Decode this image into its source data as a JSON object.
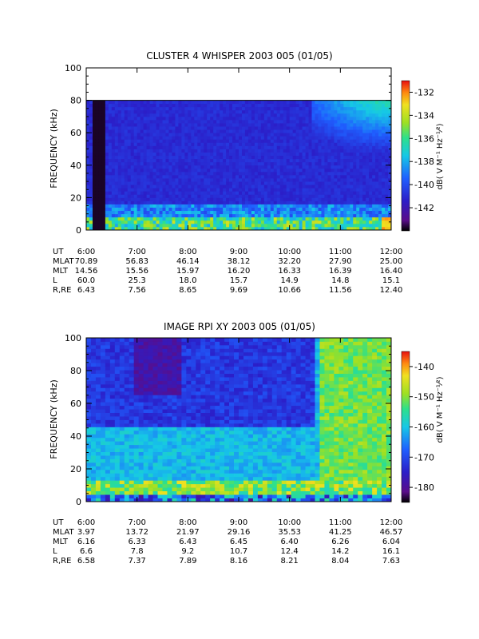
{
  "chart_data": [
    {
      "type": "heatmap",
      "title": "CLUSTER 4 WHISPER 2003 005 (01/05)",
      "ylabel": "FREQUENCY (kHz)",
      "ylim": [
        0,
        100
      ],
      "yticks": [
        "0",
        "20",
        "40",
        "60",
        "80",
        "100"
      ],
      "data_ymax": 80,
      "colorbar": {
        "label": "dB( V M⁻¹ Hz⁻¹⁄²)",
        "range": [
          -144,
          -131
        ],
        "ticks": [
          "-132",
          "-134",
          "-136",
          "-138",
          "-140",
          "-142"
        ],
        "tick_values": [
          -132,
          -134,
          -136,
          -138,
          -140,
          -142
        ]
      },
      "time_rows": [
        {
          "label": "UT",
          "values": [
            "6:00",
            "7:00",
            "8:00",
            "9:00",
            "10:00",
            "11:00",
            "12:00"
          ]
        },
        {
          "label": "MLAT",
          "values": [
            "70.89",
            "56.83",
            "46.14",
            "38.12",
            "32.20",
            "27.90",
            "25.00"
          ]
        },
        {
          "label": "MLT",
          "values": [
            "14.56",
            "15.56",
            "15.97",
            "16.20",
            "16.33",
            "16.39",
            "16.40"
          ]
        },
        {
          "label": "L",
          "values": [
            "60.0",
            "25.3",
            "18.0",
            "15.7",
            "14.9",
            "14.8",
            "15.1"
          ]
        },
        {
          "label": "R,RE",
          "values": [
            "6.43",
            "7.56",
            "8.65",
            "9.69",
            "10.66",
            "11.56",
            "12.40"
          ]
        }
      ]
    },
    {
      "type": "heatmap",
      "title": "IMAGE RPI XY 2003 005 (01/05)",
      "ylabel": "FREQUENCY (kHz)",
      "ylim": [
        0,
        100
      ],
      "yticks": [
        "0",
        "20",
        "40",
        "60",
        "80",
        "100"
      ],
      "data_ymax": 100,
      "colorbar": {
        "label": "dB( V M⁻¹ Hz⁻¹⁄²)",
        "range": [
          -185,
          -135
        ],
        "ticks": [
          "-140",
          "-150",
          "-160",
          "-170",
          "-180"
        ],
        "tick_values": [
          -140,
          -150,
          -160,
          -170,
          -180
        ]
      },
      "time_rows": [
        {
          "label": "UT",
          "values": [
            "6:00",
            "7:00",
            "8:00",
            "9:00",
            "10:00",
            "11:00",
            "12:00"
          ]
        },
        {
          "label": "MLAT",
          "values": [
            "3.97",
            "13.72",
            "21.97",
            "29.16",
            "35.53",
            "41.25",
            "46.57"
          ]
        },
        {
          "label": "MLT",
          "values": [
            "6.16",
            "6.33",
            "6.43",
            "6.45",
            "6.40",
            "6.26",
            "6.04"
          ]
        },
        {
          "label": "L",
          "values": [
            "6.6",
            "7.8",
            "9.2",
            "10.7",
            "12.4",
            "14.2",
            "16.1"
          ]
        },
        {
          "label": "R,RE",
          "values": [
            "6.58",
            "7.37",
            "7.89",
            "8.16",
            "8.21",
            "8.04",
            "7.63"
          ]
        }
      ]
    }
  ]
}
